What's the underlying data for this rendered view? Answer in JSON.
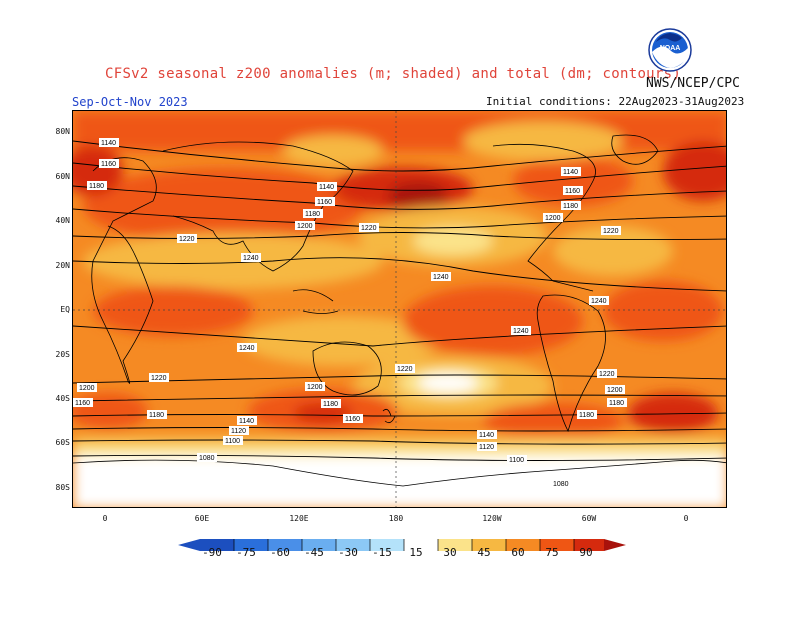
{
  "header": {
    "title": "CFSv2 seasonal z200 anomalies (m; shaded) and total (dm; contours)",
    "agency": "NWS/NCEP/CPC",
    "season": "Sep-Oct-Nov 2023",
    "initial_conditions": "Initial conditions: 22Aug2023-31Aug2023",
    "logo_text": "NOAA"
  },
  "map": {
    "lat_labels": [
      "80N",
      "60N",
      "40N",
      "20N",
      "EQ",
      "20S",
      "40S",
      "60S",
      "80S"
    ],
    "lon_labels": [
      "0",
      "60E",
      "120E",
      "180",
      "120W",
      "60W",
      "0"
    ],
    "contour_labels": [
      "1140",
      "1160",
      "1180",
      "1200",
      "1220",
      "1240",
      "1100",
      "1120",
      "1080"
    ],
    "colors": {
      "land_outline": "#000000",
      "contour": "#000000",
      "grid": "#444444"
    }
  },
  "colorbar": {
    "ticks": [
      "-90",
      "-75",
      "-60",
      "-45",
      "-30",
      "-15",
      "15",
      "30",
      "45",
      "60",
      "75",
      "90"
    ],
    "colors": [
      "#1c4fbf",
      "#2a6fdb",
      "#4a8fe8",
      "#6aaef0",
      "#8cc8f5",
      "#b4e2fa",
      "#ffffff",
      "#fbe38a",
      "#f6b842",
      "#f58a23",
      "#ef5614",
      "#d52a0e",
      "#a8120c"
    ]
  }
}
